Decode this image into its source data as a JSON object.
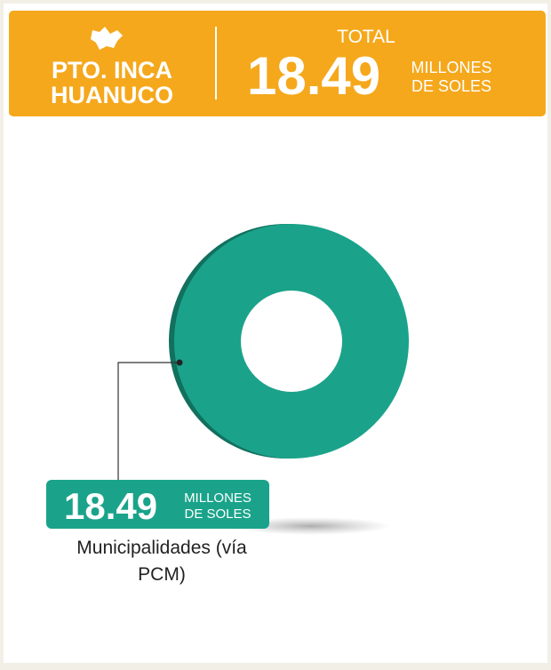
{
  "chart_data": {
    "type": "pie",
    "region": [
      "PTO. INCA",
      "HUANUCO"
    ],
    "total_label": "TOTAL",
    "total": 18.49,
    "total_unit": [
      "MILLONES",
      "DE SOLES"
    ],
    "categories": [
      "Municipalidades (vía PCM)"
    ],
    "values": [
      18.49
    ],
    "unit": [
      "MILLONES",
      "DE SOLES"
    ],
    "colors": [
      "#1aa38a"
    ]
  }
}
